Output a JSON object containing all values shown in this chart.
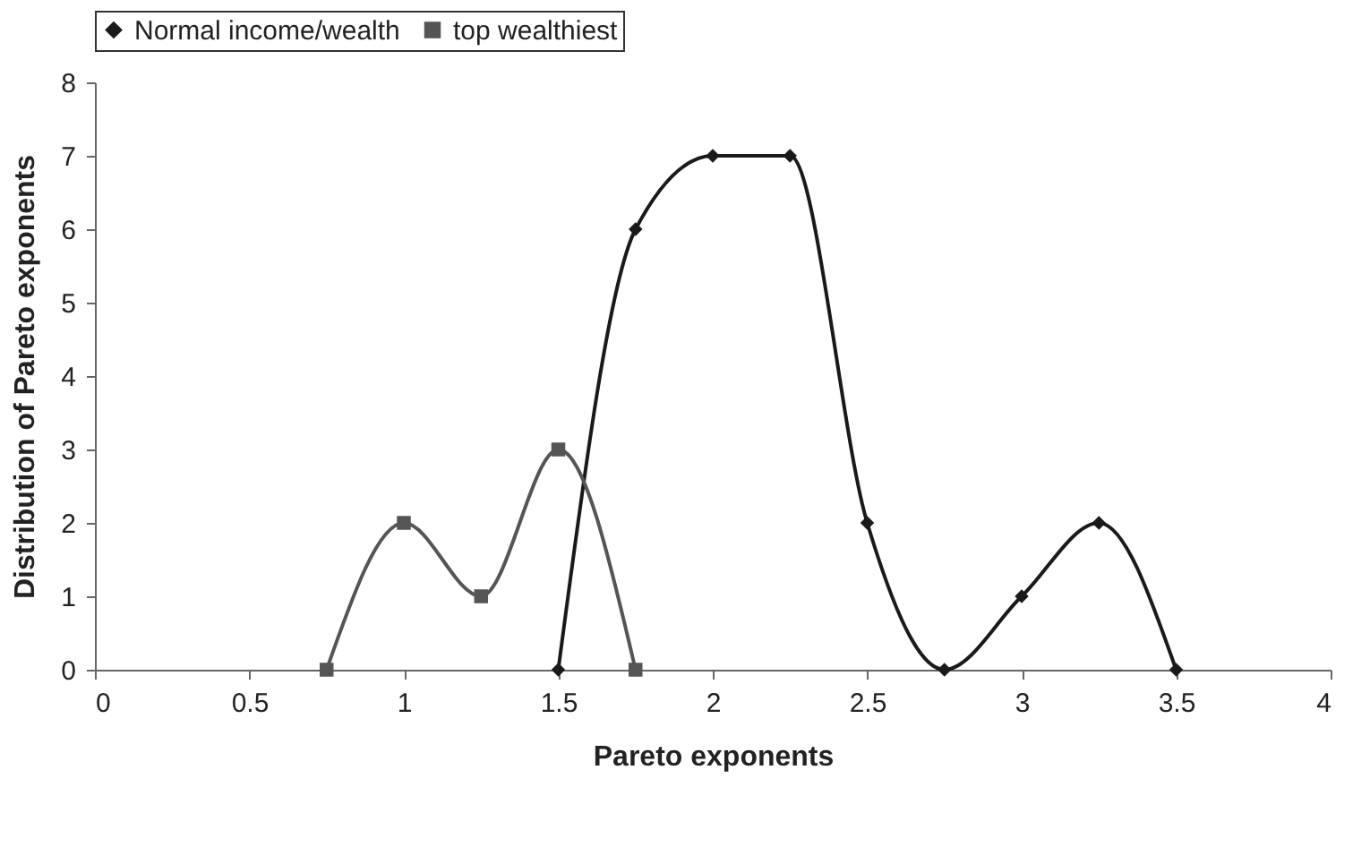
{
  "chart_data": {
    "type": "line",
    "xlabel": "Pareto exponents",
    "ylabel": "Distribution of Pareto exponents",
    "xlim": [
      0,
      4
    ],
    "xticks": [
      0,
      0.5,
      1,
      1.5,
      2,
      2.5,
      3,
      3.5,
      4
    ],
    "ylim": [
      0,
      8
    ],
    "yticks": [
      0,
      1,
      2,
      3,
      4,
      5,
      6,
      7,
      8
    ],
    "grid": false,
    "legend": "top",
    "series": [
      {
        "name": "Normal income/wealth",
        "color": "#1a1a1a",
        "marker": "diamond",
        "line_style": "solid",
        "x": [
          1.5,
          1.75,
          2,
          2.25,
          2.5,
          2.75,
          3,
          3.25,
          3.5
        ],
        "values": [
          0,
          6,
          7,
          7,
          2,
          0,
          1,
          2,
          0
        ]
      },
      {
        "name": "top wealthiest",
        "color": "#555555",
        "marker": "square",
        "line_style": "solid",
        "x": [
          0.75,
          1,
          1.25,
          1.5,
          1.75
        ],
        "values": [
          0,
          2,
          1,
          3,
          0
        ]
      }
    ]
  }
}
